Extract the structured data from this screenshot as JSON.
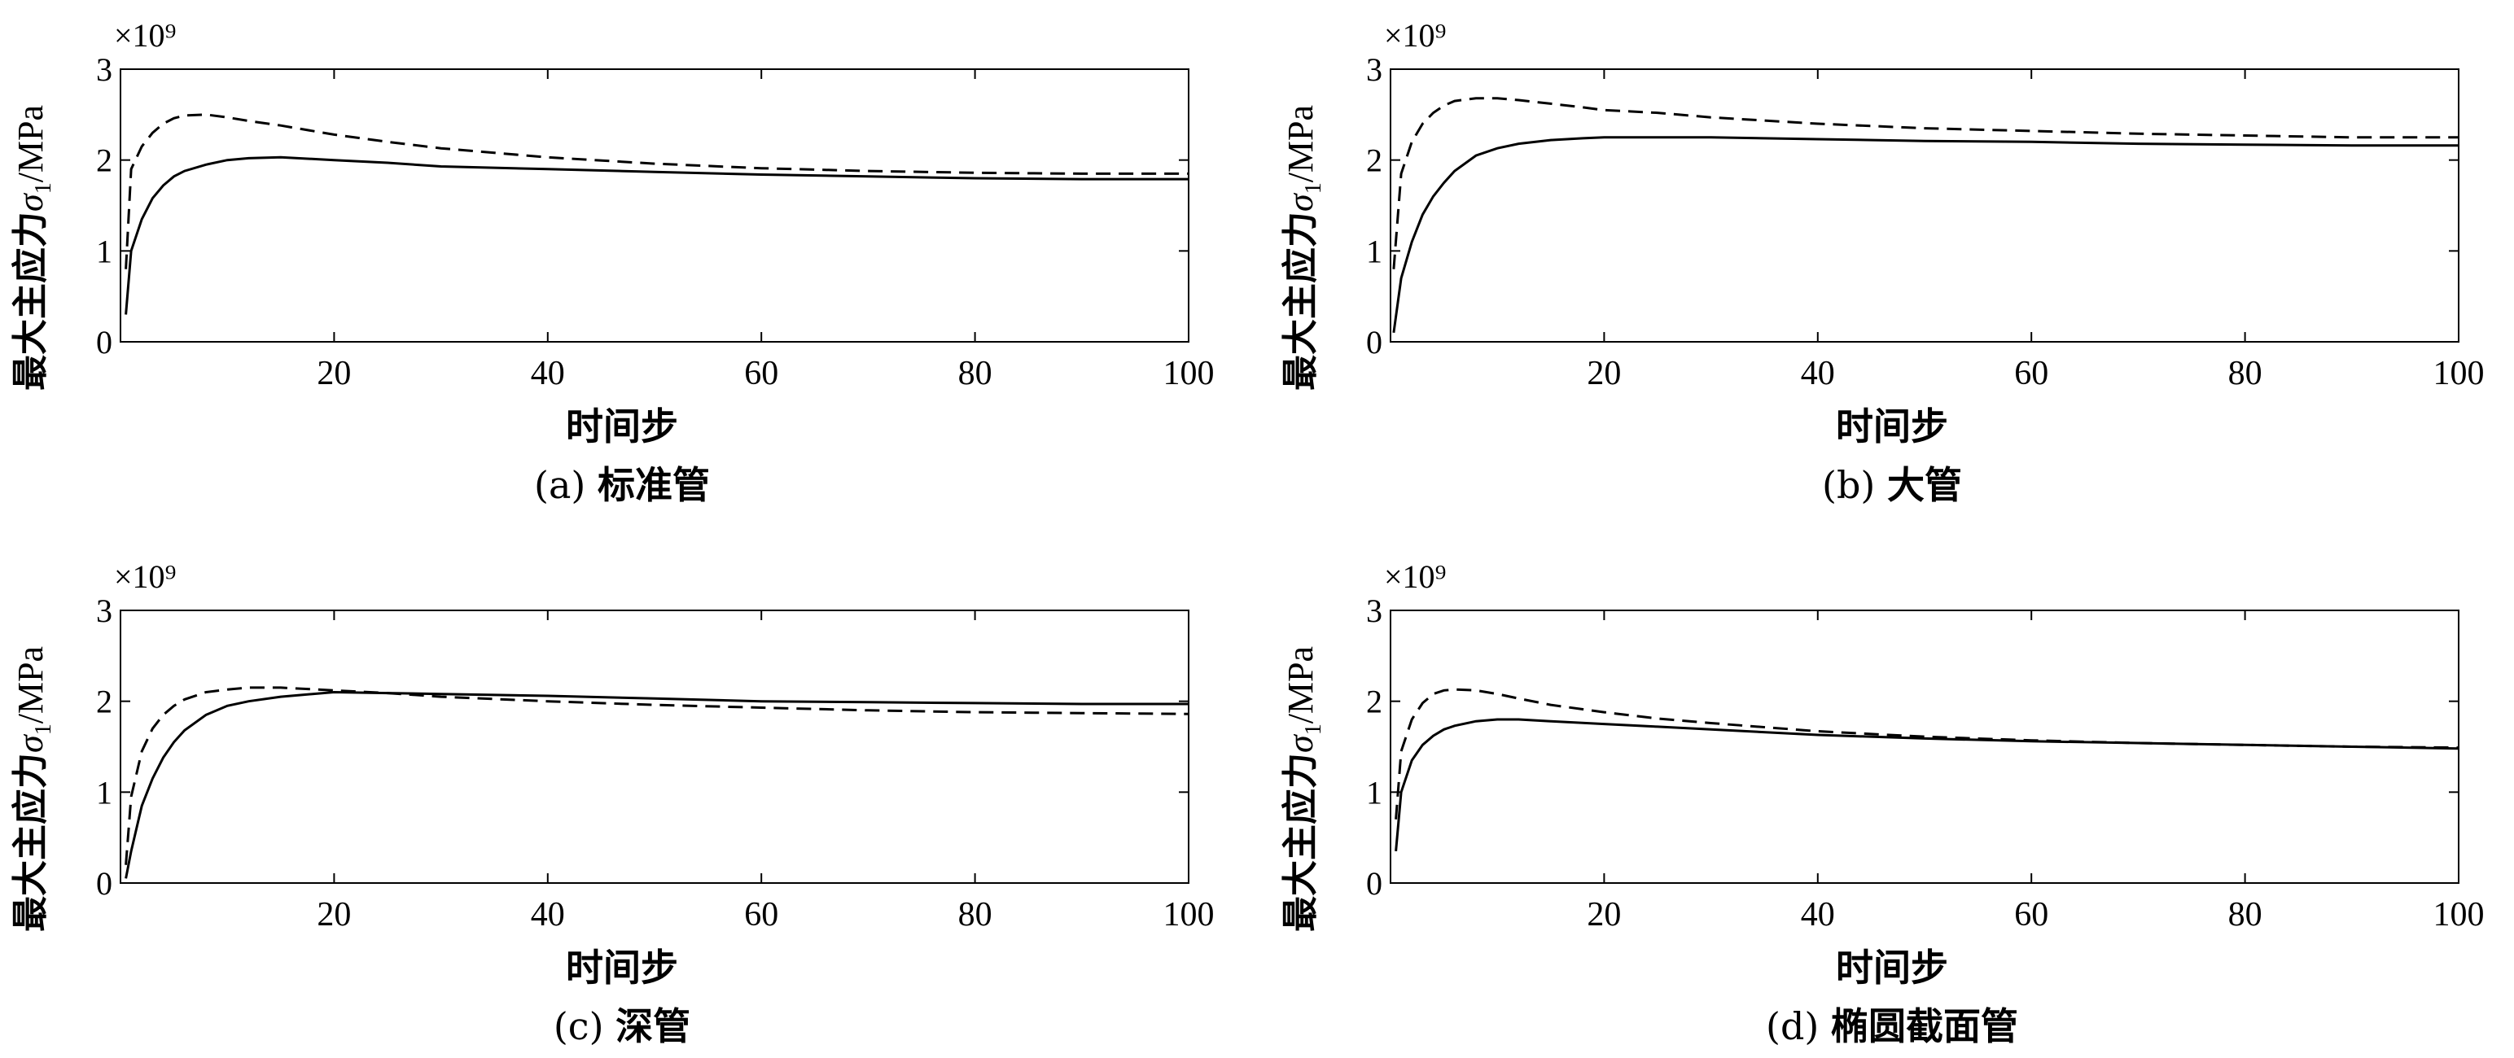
{
  "chart_data": [
    {
      "type": "line",
      "panel_label": "(a)",
      "caption": "标准管",
      "multiplier": "×10⁹",
      "ylabel_prefix": "最大主应力",
      "ylabel_symbol": "σ",
      "ylabel_sub": "1",
      "ylabel_unit": "/MPa",
      "xlabel": "时间步",
      "xlim": [
        0,
        100
      ],
      "ylim": [
        0,
        3
      ],
      "xticks": [
        20,
        40,
        60,
        80,
        100
      ],
      "yticks": [
        0,
        1,
        2,
        3
      ],
      "grid": false,
      "x": [
        0.5,
        1,
        2,
        3,
        4,
        5,
        6,
        8,
        10,
        12,
        15,
        20,
        25,
        30,
        40,
        50,
        60,
        70,
        80,
        90,
        100
      ],
      "series": [
        {
          "style": "solid",
          "values": [
            0.3,
            1.0,
            1.35,
            1.58,
            1.72,
            1.82,
            1.88,
            1.95,
            2.0,
            2.02,
            2.03,
            2.0,
            1.97,
            1.93,
            1.9,
            1.87,
            1.84,
            1.82,
            1.8,
            1.79,
            1.79
          ]
        },
        {
          "style": "dashed",
          "values": [
            0.8,
            1.9,
            2.15,
            2.3,
            2.4,
            2.46,
            2.49,
            2.5,
            2.47,
            2.43,
            2.38,
            2.28,
            2.2,
            2.13,
            2.03,
            1.96,
            1.91,
            1.88,
            1.86,
            1.85,
            1.85
          ]
        }
      ]
    },
    {
      "type": "line",
      "panel_label": "(b)",
      "caption": "大管",
      "multiplier": "×10⁹",
      "ylabel_prefix": "最大主应力",
      "ylabel_symbol": "σ",
      "ylabel_sub": "1",
      "ylabel_unit": "/MPa",
      "xlabel": "时间步",
      "xlim": [
        0,
        100
      ],
      "ylim": [
        0,
        3
      ],
      "xticks": [
        20,
        40,
        60,
        80,
        100
      ],
      "yticks": [
        0,
        1,
        2,
        3
      ],
      "grid": false,
      "x": [
        0.3,
        1,
        2,
        3,
        4,
        5,
        6,
        8,
        10,
        12,
        15,
        18,
        20,
        25,
        30,
        40,
        50,
        60,
        70,
        80,
        90,
        100
      ],
      "series": [
        {
          "style": "solid",
          "values": [
            0.1,
            0.7,
            1.1,
            1.4,
            1.6,
            1.75,
            1.88,
            2.05,
            2.13,
            2.18,
            2.22,
            2.24,
            2.25,
            2.25,
            2.25,
            2.23,
            2.21,
            2.2,
            2.18,
            2.17,
            2.16,
            2.16
          ]
        },
        {
          "style": "dashed",
          "values": [
            0.8,
            1.85,
            2.2,
            2.4,
            2.52,
            2.6,
            2.65,
            2.68,
            2.68,
            2.66,
            2.62,
            2.58,
            2.55,
            2.52,
            2.47,
            2.4,
            2.35,
            2.32,
            2.29,
            2.27,
            2.25,
            2.25
          ]
        }
      ]
    },
    {
      "type": "line",
      "panel_label": "(c)",
      "caption": "深管",
      "multiplier": "×10⁹",
      "ylabel_prefix": "最大主应力",
      "ylabel_symbol": "σ",
      "ylabel_sub": "1",
      "ylabel_unit": "/MPa",
      "xlabel": "时间步",
      "xlim": [
        0,
        100
      ],
      "ylim": [
        0,
        3
      ],
      "xticks": [
        20,
        40,
        60,
        80,
        100
      ],
      "yticks": [
        0,
        1,
        2,
        3
      ],
      "grid": false,
      "x": [
        0.5,
        1,
        2,
        3,
        4,
        5,
        6,
        8,
        10,
        12,
        15,
        20,
        25,
        30,
        40,
        50,
        60,
        70,
        80,
        90,
        100
      ],
      "series": [
        {
          "style": "solid",
          "values": [
            0.05,
            0.35,
            0.85,
            1.15,
            1.38,
            1.55,
            1.68,
            1.85,
            1.95,
            2.0,
            2.05,
            2.1,
            2.09,
            2.08,
            2.06,
            2.03,
            2.0,
            1.99,
            1.98,
            1.97,
            1.97
          ]
        },
        {
          "style": "dashed",
          "values": [
            0.2,
            0.95,
            1.45,
            1.7,
            1.85,
            1.95,
            2.02,
            2.1,
            2.13,
            2.15,
            2.15,
            2.12,
            2.09,
            2.05,
            2.0,
            1.96,
            1.93,
            1.9,
            1.88,
            1.87,
            1.86
          ]
        }
      ]
    },
    {
      "type": "line",
      "panel_label": "(d)",
      "caption": "椭圆截面管",
      "multiplier": "×10⁹",
      "ylabel_prefix": "最大主应力",
      "ylabel_symbol": "σ",
      "ylabel_sub": "1",
      "ylabel_unit": "/MPa",
      "xlabel": "时间步",
      "xlim": [
        0,
        100
      ],
      "ylim": [
        0,
        3
      ],
      "xticks": [
        20,
        40,
        60,
        80,
        100
      ],
      "yticks": [
        0,
        1,
        2,
        3
      ],
      "grid": false,
      "x": [
        0.5,
        1,
        2,
        3,
        4,
        5,
        6,
        8,
        10,
        12,
        15,
        20,
        25,
        30,
        40,
        50,
        60,
        70,
        80,
        90,
        100
      ],
      "series": [
        {
          "style": "solid",
          "values": [
            0.35,
            1.0,
            1.35,
            1.52,
            1.62,
            1.69,
            1.73,
            1.78,
            1.8,
            1.8,
            1.78,
            1.75,
            1.72,
            1.69,
            1.63,
            1.59,
            1.56,
            1.54,
            1.52,
            1.5,
            1.48
          ]
        },
        {
          "style": "dashed",
          "values": [
            0.7,
            1.45,
            1.8,
            1.98,
            2.08,
            2.12,
            2.13,
            2.12,
            2.08,
            2.03,
            1.96,
            1.88,
            1.81,
            1.76,
            1.67,
            1.61,
            1.57,
            1.54,
            1.52,
            1.5,
            1.49
          ]
        }
      ]
    }
  ]
}
